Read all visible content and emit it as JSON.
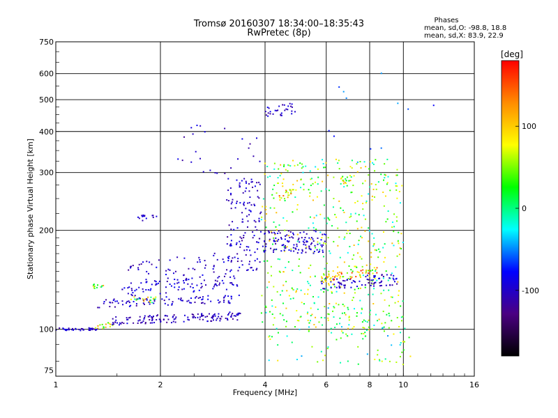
{
  "chart_data": {
    "type": "scatter",
    "title": "Tromsø 20160307 18:34:00–18:35:43",
    "subtitle": "RwPretec (8p)",
    "xlabel": "Frequency [MHz]",
    "ylabel": "Stationary phase Virtual Height [km]",
    "x_scale": "log",
    "y_scale": "log",
    "xlim": [
      1,
      16
    ],
    "ylim": [
      72,
      750
    ],
    "x_ticks": [
      1,
      2,
      4,
      6,
      8,
      10,
      16
    ],
    "x_tick_labels": [
      "1",
      "2",
      "4",
      "6",
      "8",
      "10",
      "16"
    ],
    "y_ticks": [
      75,
      100,
      200,
      300,
      400,
      500,
      600,
      750
    ],
    "y_tick_labels": [
      "75",
      "100",
      "200",
      "300",
      "400",
      "500",
      "600",
      "750"
    ],
    "grid": true,
    "colorbar": {
      "label": "[deg]",
      "range": [
        -180,
        180
      ],
      "ticks": [
        100,
        0,
        -100
      ],
      "tick_labels": [
        "100",
        "0",
        "-100"
      ],
      "stops": [
        "#000000",
        "#4b0082",
        "#0000ff",
        "#00ffff",
        "#00ff00",
        "#ffff00",
        "#ff8c00",
        "#ff0000"
      ]
    },
    "phase_stats": {
      "header": "Phases",
      "line_o": "mean, sd,O:  -98.8, 18.8",
      "line_x": "mean, sd,X:  83.9, 22.9"
    },
    "clusters": [
      {
        "x": [
          1.0,
          1.32
        ],
        "y": [
          100,
          100
        ],
        "phase": -100,
        "n": 40,
        "spread": 1
      },
      {
        "x": [
          1.3,
          1.5
        ],
        "y": [
          102,
          104
        ],
        "phase": 60,
        "n": 15,
        "spread": 2
      },
      {
        "x": [
          1.45,
          3.4
        ],
        "y": [
          106,
          110
        ],
        "phase": -105,
        "n": 140,
        "spread": 3
      },
      {
        "x": [
          1.32,
          3.4
        ],
        "y": [
          120,
          124
        ],
        "phase": -100,
        "n": 90,
        "spread": 3
      },
      {
        "x": [
          1.28,
          1.4
        ],
        "y": [
          135,
          135
        ],
        "phase": 60,
        "n": 12,
        "spread": 2
      },
      {
        "x": [
          1.6,
          1.95
        ],
        "y": [
          123,
          123
        ],
        "phase": 55,
        "n": 18,
        "spread": 2
      },
      {
        "x": [
          1.55,
          3.4
        ],
        "y": [
          132,
          140
        ],
        "phase": -95,
        "n": 90,
        "spread": 5
      },
      {
        "x": [
          1.6,
          3.2
        ],
        "y": [
          148,
          160
        ],
        "phase": -100,
        "n": 60,
        "spread": 8
      },
      {
        "x": [
          1.72,
          1.95
        ],
        "y": [
          218,
          220
        ],
        "phase": -100,
        "n": 14,
        "spread": 2
      },
      {
        "x": [
          3.1,
          3.9
        ],
        "y": [
          150,
          290
        ],
        "phase": -100,
        "n": 140,
        "spread": 0
      },
      {
        "x": [
          4.0,
          4.9
        ],
        "y": [
          460,
          470
        ],
        "phase": -100,
        "n": 30,
        "spread": 4
      },
      {
        "x": [
          3.9,
          10.0
        ],
        "y": [
          95,
          330
        ],
        "phase": 40,
        "n": 520,
        "spread": 0
      },
      {
        "x": [
          3.9,
          6.0
        ],
        "y": [
          170,
          200
        ],
        "phase": -100,
        "n": 120,
        "spread": 0
      },
      {
        "x": [
          5.8,
          9.6
        ],
        "y": [
          138,
          142
        ],
        "phase": -100,
        "n": 80,
        "spread": 4
      },
      {
        "x": [
          5.8,
          8.4
        ],
        "y": [
          143,
          150
        ],
        "phase": 100,
        "n": 60,
        "spread": 3
      },
      {
        "x": [
          4.4,
          4.9
        ],
        "y": [
          255,
          262
        ],
        "phase": 100,
        "n": 20,
        "spread": 3
      },
      {
        "x": [
          6.6,
          7.1
        ],
        "y": [
          283,
          290
        ],
        "phase": 60,
        "n": 14,
        "spread": 3
      },
      {
        "x": [
          2.2,
          4.0
        ],
        "y": [
          290,
          420
        ],
        "phase": -100,
        "n": 25,
        "spread": 0
      },
      {
        "x": [
          4.0,
          10.5
        ],
        "y": [
          78,
          120
        ],
        "phase": 20,
        "n": 90,
        "spread": 0
      },
      {
        "x": [
          6.0,
          13.5
        ],
        "y": [
          300,
          620
        ],
        "phase": -60,
        "n": 12,
        "spread": 0
      }
    ]
  }
}
